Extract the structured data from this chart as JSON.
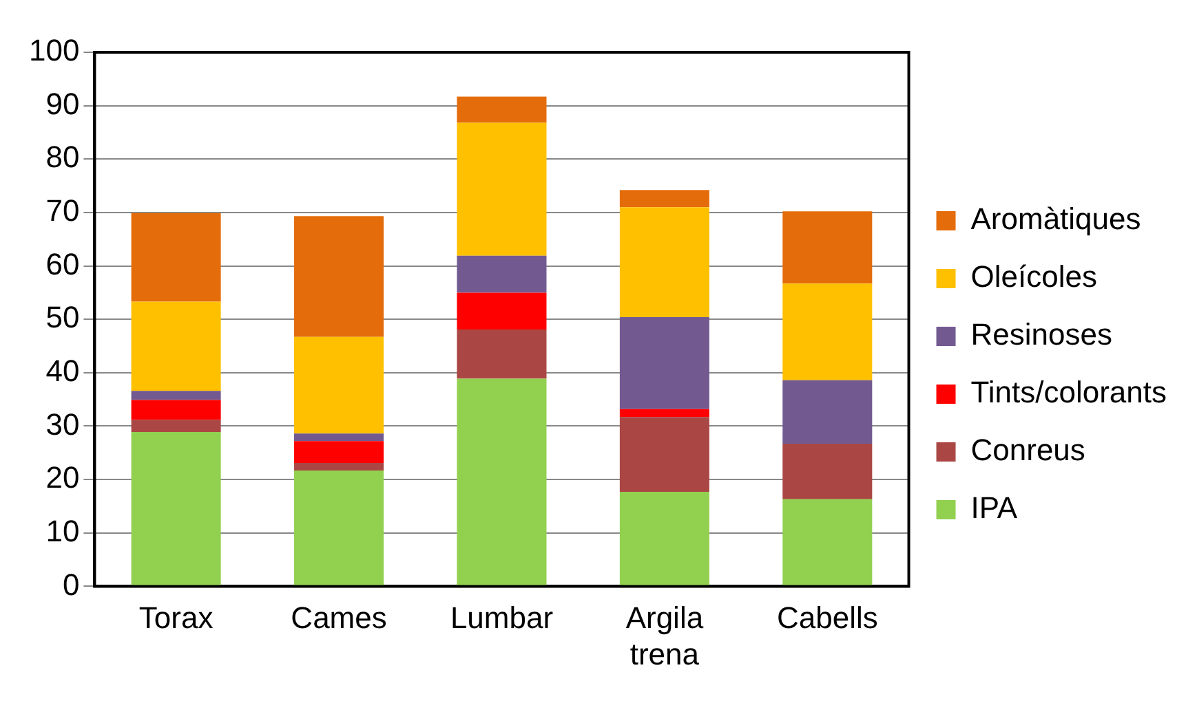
{
  "chart_data": {
    "type": "bar",
    "stacked": true,
    "categories": [
      "Torax",
      "Cames",
      "Lumbar",
      "Argila trena",
      "Cabells"
    ],
    "series": [
      {
        "name": "IPA",
        "color": "#92d050",
        "values": [
          28.9,
          21.7,
          38.9,
          17.7,
          16.3
        ]
      },
      {
        "name": "Conreus",
        "color": "#aa4744",
        "values": [
          2.3,
          1.4,
          9.2,
          14.0,
          10.4
        ]
      },
      {
        "name": "Tints/colorants",
        "color": "#ff0000",
        "values": [
          3.7,
          4.1,
          6.9,
          1.5,
          0
        ]
      },
      {
        "name": "Resinoses",
        "color": "#725a91",
        "values": [
          1.7,
          1.4,
          6.9,
          17.2,
          11.9
        ]
      },
      {
        "name": "Oleícoles",
        "color": "#ffc000",
        "values": [
          16.7,
          18.1,
          24.9,
          20.6,
          18.1
        ]
      },
      {
        "name": "Aromàtiques",
        "color": "#e46c0a",
        "values": [
          16.6,
          22.6,
          4.9,
          3.2,
          13.5
        ]
      }
    ],
    "ylim": [
      0,
      100
    ],
    "yticks": [
      0,
      10,
      20,
      30,
      40,
      50,
      60,
      70,
      80,
      90,
      100
    ],
    "grid": "y",
    "legend": "right"
  }
}
